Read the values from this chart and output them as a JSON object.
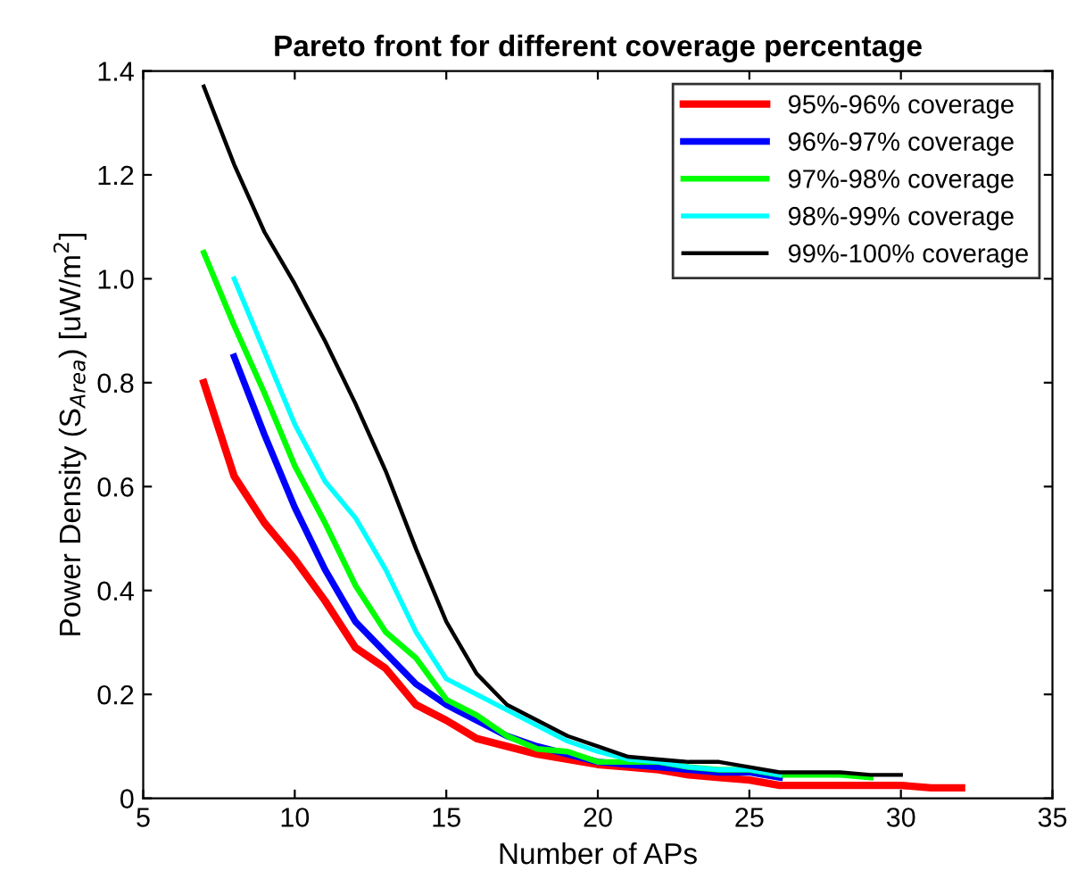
{
  "chart_data": {
    "type": "line",
    "title": "Pareto front for different coverage percentage",
    "xlabel": "Number of APs",
    "ylabel": "Power Density (S$_{Area}$) [uW/m$^{2}$]",
    "xlim": [
      5,
      35
    ],
    "xticks": [
      5,
      10,
      15,
      20,
      25,
      30,
      35
    ],
    "ylim": [
      0,
      1.4
    ],
    "yticks": [
      0,
      0.2,
      0.4,
      0.6,
      0.8,
      {
        "value": 1,
        "label": "1.0"
      },
      1.2,
      1.4
    ],
    "legend": "top right",
    "grid": false,
    "marker": "none",
    "line_style": "solid",
    "series": [
      {
        "name": "95%-96% coverage",
        "color": "#ff0000",
        "x": [
          7,
          8,
          9,
          10,
          11,
          12,
          13,
          14,
          15,
          16,
          17,
          18,
          19,
          20,
          21,
          22,
          23,
          24,
          25,
          26,
          27,
          28,
          29,
          30,
          31,
          32
        ],
        "values": [
          0.8,
          0.62,
          0.53,
          0.46,
          0.38,
          0.29,
          0.25,
          0.18,
          0.15,
          0.115,
          0.1,
          0.085,
          0.075,
          0.065,
          0.06,
          0.055,
          0.045,
          0.04,
          0.035,
          0.025,
          0.025,
          0.025,
          0.025,
          0.025,
          0.02,
          0.02
        ]
      },
      {
        "name": "96%-97% coverage",
        "color": "#0000ff",
        "x": [
          8,
          9,
          10,
          11,
          12,
          13,
          14,
          15,
          16,
          17,
          18,
          19,
          20,
          21,
          22,
          23,
          24,
          25,
          26
        ],
        "values": [
          0.85,
          0.7,
          0.56,
          0.44,
          0.34,
          0.28,
          0.22,
          0.18,
          0.15,
          0.12,
          0.1,
          0.085,
          0.07,
          0.065,
          0.06,
          0.055,
          0.05,
          0.05,
          0.04
        ]
      },
      {
        "name": "97%-98% coverage",
        "color": "#00ff00",
        "x": [
          7,
          8,
          9,
          10,
          11,
          12,
          13,
          14,
          15,
          16,
          17,
          18,
          19,
          20,
          21,
          22,
          23,
          24,
          25,
          26,
          27,
          28,
          29
        ],
        "values": [
          1.05,
          0.91,
          0.78,
          0.64,
          0.53,
          0.41,
          0.32,
          0.27,
          0.19,
          0.16,
          0.12,
          0.095,
          0.09,
          0.07,
          0.07,
          0.07,
          0.06,
          0.055,
          0.055,
          0.045,
          0.045,
          0.045,
          0.04
        ]
      },
      {
        "name": "98%-99% coverage",
        "color": "#00ffff",
        "x": [
          8,
          9,
          10,
          11,
          12,
          13,
          14,
          15,
          16,
          17,
          18,
          19,
          20,
          21,
          22,
          23,
          24,
          25,
          26
        ],
        "values": [
          1.0,
          0.86,
          0.72,
          0.61,
          0.54,
          0.44,
          0.32,
          0.23,
          0.2,
          0.17,
          0.14,
          0.11,
          0.09,
          0.075,
          0.07,
          0.06,
          0.055,
          0.055,
          0.045
        ]
      },
      {
        "name": "99%-100% coverage",
        "color": "#000000",
        "x": [
          7,
          8,
          9,
          10,
          11,
          12,
          13,
          14,
          15,
          16,
          17,
          18,
          19,
          20,
          21,
          22,
          23,
          24,
          25,
          26,
          27,
          28,
          29,
          30
        ],
        "values": [
          1.37,
          1.22,
          1.09,
          0.99,
          0.88,
          0.76,
          0.63,
          0.48,
          0.34,
          0.24,
          0.18,
          0.15,
          0.12,
          0.1,
          0.08,
          0.075,
          0.07,
          0.07,
          0.06,
          0.05,
          0.05,
          0.05,
          0.045,
          0.045
        ]
      }
    ]
  }
}
